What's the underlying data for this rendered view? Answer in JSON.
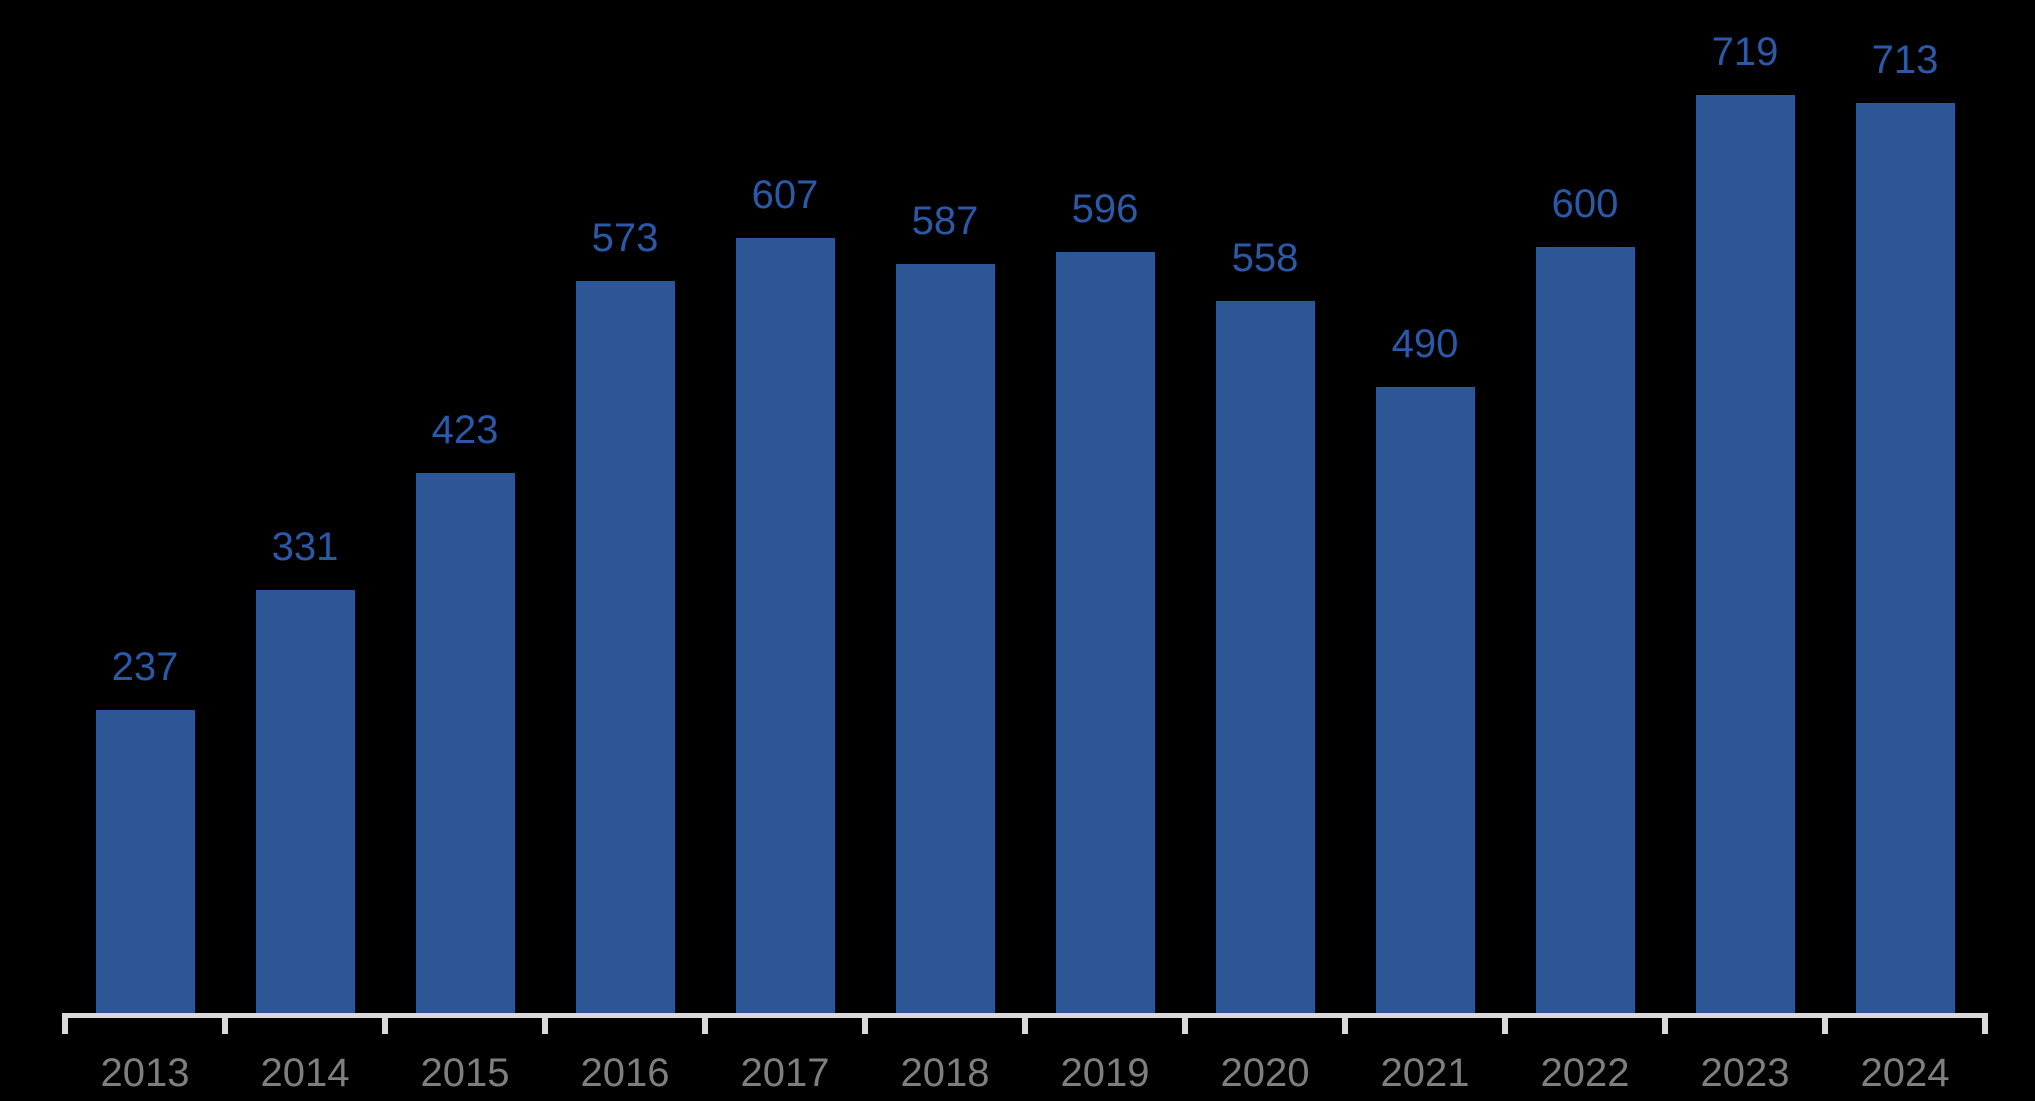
{
  "chart_data": {
    "type": "bar",
    "title": "",
    "xlabel": "",
    "ylabel": "",
    "categories": [
      "2013",
      "2014",
      "2015",
      "2016",
      "2017",
      "2018",
      "2019",
      "2020",
      "2021",
      "2022",
      "2023",
      "2024"
    ],
    "values": [
      237,
      331,
      423,
      573,
      607,
      587,
      596,
      558,
      490,
      600,
      719,
      713
    ],
    "series": [
      {
        "name": "",
        "values": [
          237,
          331,
          423,
          573,
          607,
          587,
          596,
          558,
          490,
          600,
          719,
          713
        ]
      }
    ],
    "ylim": [
      0,
      750
    ],
    "grid": false,
    "legend": false,
    "y_axis_visible": false,
    "data_labels": "outside-end",
    "colors": {
      "background": "#000000",
      "bar": "#2E5596",
      "value_label": "#2C58A8",
      "axis_line": "#D9D9D9",
      "tick": "#D9D9D9",
      "year_label": "#7F7F7F"
    }
  }
}
